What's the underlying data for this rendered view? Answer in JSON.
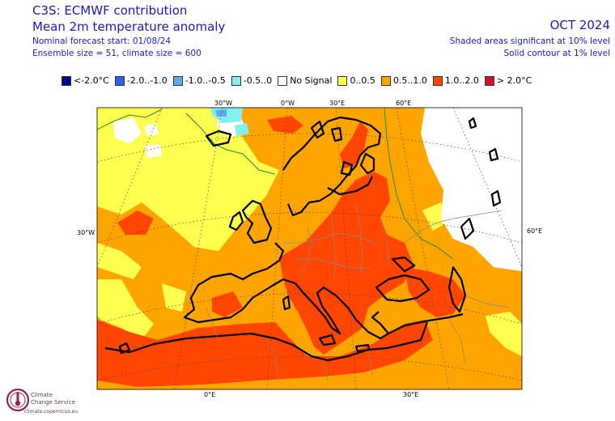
{
  "header": {
    "title_line1": "C3S: ECMWF contribution",
    "title_line2": "Mean 2m temperature anomaly",
    "info_line1": "Nominal forecast start: 01/08/24",
    "info_line2": "Ensemble size = 51, climate size = 600",
    "valid_period": "OCT 2024",
    "significance_line1": "Shaded areas significant at 10% level",
    "significance_line2": "Solid contour at 1% level"
  },
  "legend": [
    {
      "label": "<-2.0°C",
      "color": "#000090"
    },
    {
      "label": "-2.0..-1.0",
      "color": "#3060f0"
    },
    {
      "label": "-1.0..-0.5",
      "color": "#60a8f0"
    },
    {
      "label": "-0.5..0",
      "color": "#80f0f0"
    },
    {
      "label": "No Signal",
      "color": "#ffffff"
    },
    {
      "label": "0..0.5",
      "color": "#ffff50"
    },
    {
      "label": "0.5..1.0",
      "color": "#ffa500"
    },
    {
      "label": "1.0..2.0",
      "color": "#ff4500"
    },
    {
      "label": "> 2.0°C",
      "color": "#d01030"
    }
  ],
  "grid_labels": {
    "top": [
      "30°W",
      "0°W",
      "30°E",
      "60°E"
    ],
    "left": "30°W",
    "right": "60°E",
    "bottom": [
      "0°E",
      "30°E"
    ]
  },
  "logo": {
    "line1": "Climate",
    "line2": "Change Service",
    "url": "climate.copernicus.eu"
  },
  "icons": {
    "logo": "copernicus-thermometer-icon"
  }
}
